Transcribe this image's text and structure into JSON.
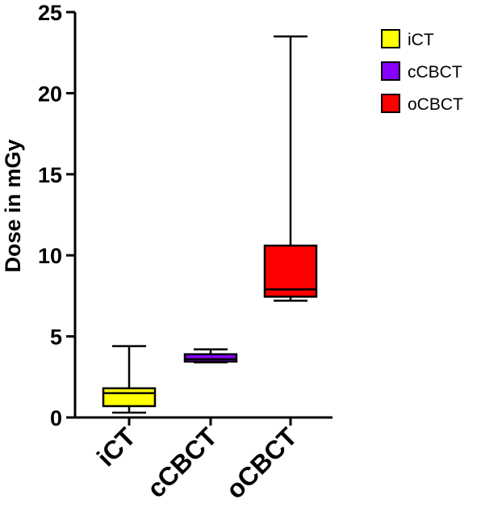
{
  "chart_data": {
    "type": "box",
    "title": "",
    "xlabel": "",
    "ylabel": "Dose in mGy",
    "ylim": [
      0,
      25
    ],
    "y_ticks": [
      0,
      5,
      10,
      15,
      20,
      25
    ],
    "legend_position": "top-right",
    "grid": false,
    "categories": [
      "iCT",
      "cCBCT",
      "oCBCT"
    ],
    "series": [
      {
        "name": "iCT",
        "color": "#ffff00",
        "min": 0.3,
        "q1": 0.7,
        "median": 1.5,
        "q3": 1.8,
        "max": 4.4
      },
      {
        "name": "cCBCT",
        "color": "#8a00ff",
        "min": 3.4,
        "q1": 3.45,
        "median": 3.6,
        "q3": 3.9,
        "max": 4.2
      },
      {
        "name": "oCBCT",
        "color": "#ff0000",
        "min": 7.2,
        "q1": 7.45,
        "median": 7.9,
        "q3": 10.6,
        "max": 23.5
      }
    ]
  }
}
